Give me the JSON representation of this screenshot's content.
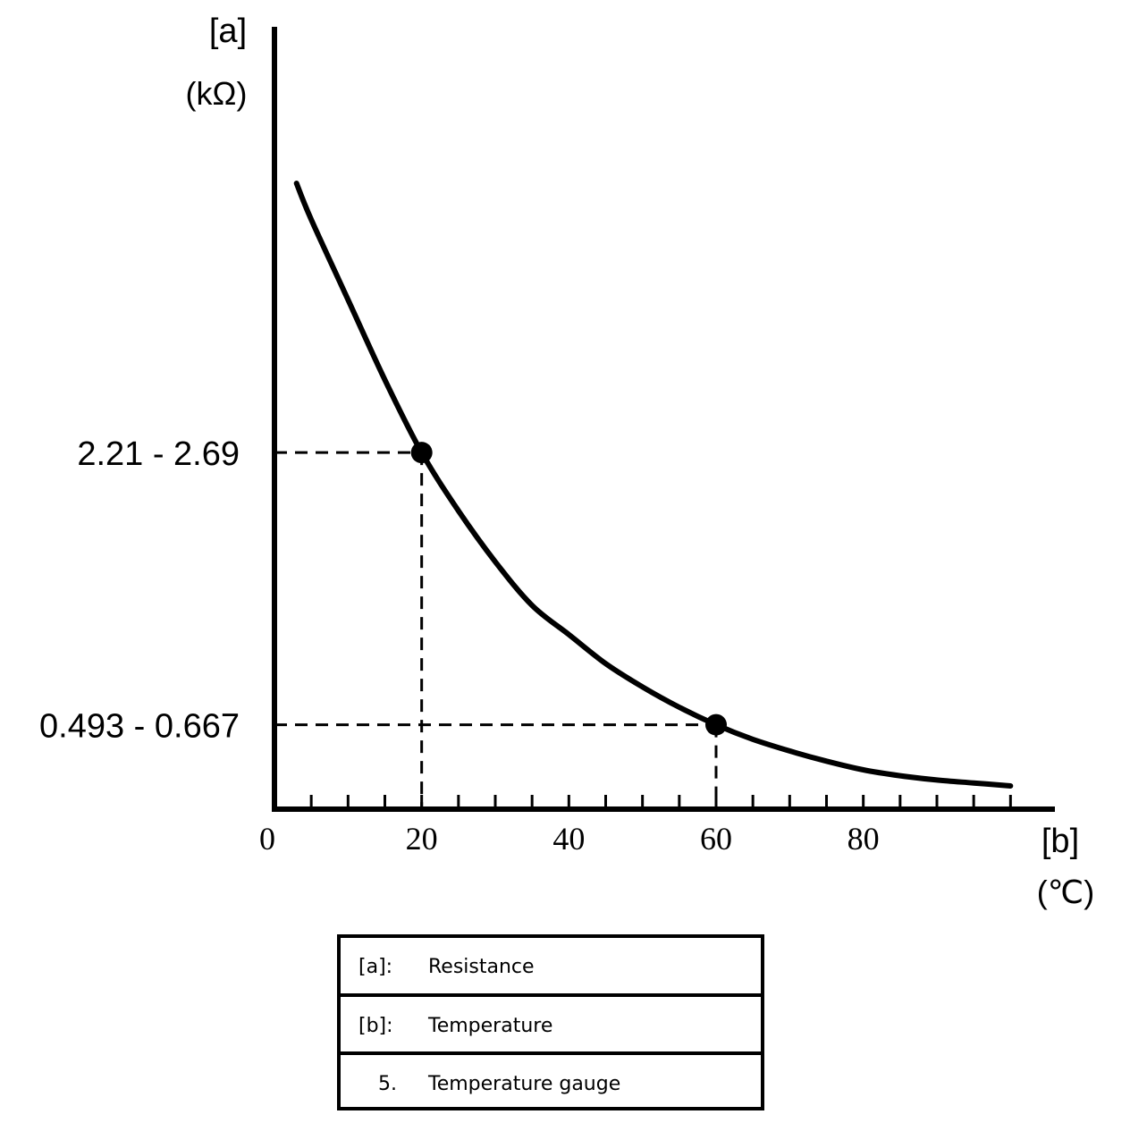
{
  "chart_data": {
    "type": "line",
    "series": [
      {
        "x": [
          3,
          5,
          10,
          15,
          20,
          25,
          30,
          35,
          40,
          45,
          50,
          55,
          60,
          65,
          70,
          75,
          80,
          85,
          90,
          95,
          100
        ],
        "y": [
          4.3,
          4.05,
          3.5,
          2.95,
          2.45,
          2.05,
          1.7,
          1.4,
          1.2,
          1.0,
          0.84,
          0.7,
          0.58,
          0.48,
          0.4,
          0.33,
          0.27,
          0.23,
          0.2,
          0.18,
          0.16
        ]
      }
    ],
    "points": [
      {
        "x": 20,
        "y": 2.45,
        "label": "2.21 - 2.69"
      },
      {
        "x": 60,
        "y": 0.58,
        "label": "0.493 - 0.667"
      }
    ],
    "x_ticks": [
      0,
      20,
      40,
      60,
      80
    ],
    "xlim": [
      0,
      105
    ],
    "ylim": [
      0,
      5.25
    ],
    "xlabel": "[b]",
    "xunit": "(℃)",
    "ylabel": "[a]",
    "yunit": "(kΩ)",
    "grid": false
  },
  "legend": {
    "rows": [
      {
        "key": "[a]:",
        "value": "Resistance"
      },
      {
        "key": "[b]:",
        "value": "Temperature"
      },
      {
        "key": "5.",
        "value": "Temperature gauge"
      }
    ]
  },
  "colors": {
    "line": "#000000",
    "background": "#ffffff"
  }
}
